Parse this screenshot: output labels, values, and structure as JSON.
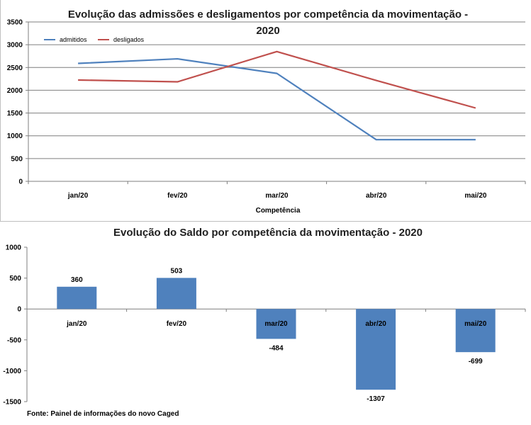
{
  "chart_data": [
    {
      "type": "line",
      "title_line1": "Evolução das admissões e desligamentos por competência da movimentação -",
      "title_line2": "2020",
      "xlabel": "Competência",
      "ylabel": "",
      "categories": [
        "jan/20",
        "fev/20",
        "mar/20",
        "abr/20",
        "mai/20"
      ],
      "ylim": [
        0,
        3500
      ],
      "yticks": [
        0,
        500,
        1000,
        1500,
        2000,
        2500,
        3000,
        3500
      ],
      "series": [
        {
          "name": "admitidos",
          "color": "#4f81bd",
          "values": [
            2590,
            2690,
            2370,
            915,
            915
          ]
        },
        {
          "name": "desligados",
          "color": "#c0504d",
          "values": [
            2225,
            2185,
            2850,
            2215,
            1610
          ]
        }
      ],
      "legend": "top-left"
    },
    {
      "type": "bar",
      "title": "Evolução do Saldo por competência da movimentação - 2020",
      "categories": [
        "jan/20",
        "fev/20",
        "mar/20",
        "abr/20",
        "mai/20"
      ],
      "values": [
        360,
        503,
        -484,
        -1307,
        -699
      ],
      "value_labels": [
        "360",
        "503",
        "-484",
        "-1307",
        "-699"
      ],
      "ylim": [
        -1500,
        1000
      ],
      "yticks": [
        -1500,
        -1000,
        -500,
        0,
        500,
        1000
      ],
      "bar_color": "#4f81bd"
    }
  ],
  "source": "Fonte: Painel de informações do novo Caged"
}
